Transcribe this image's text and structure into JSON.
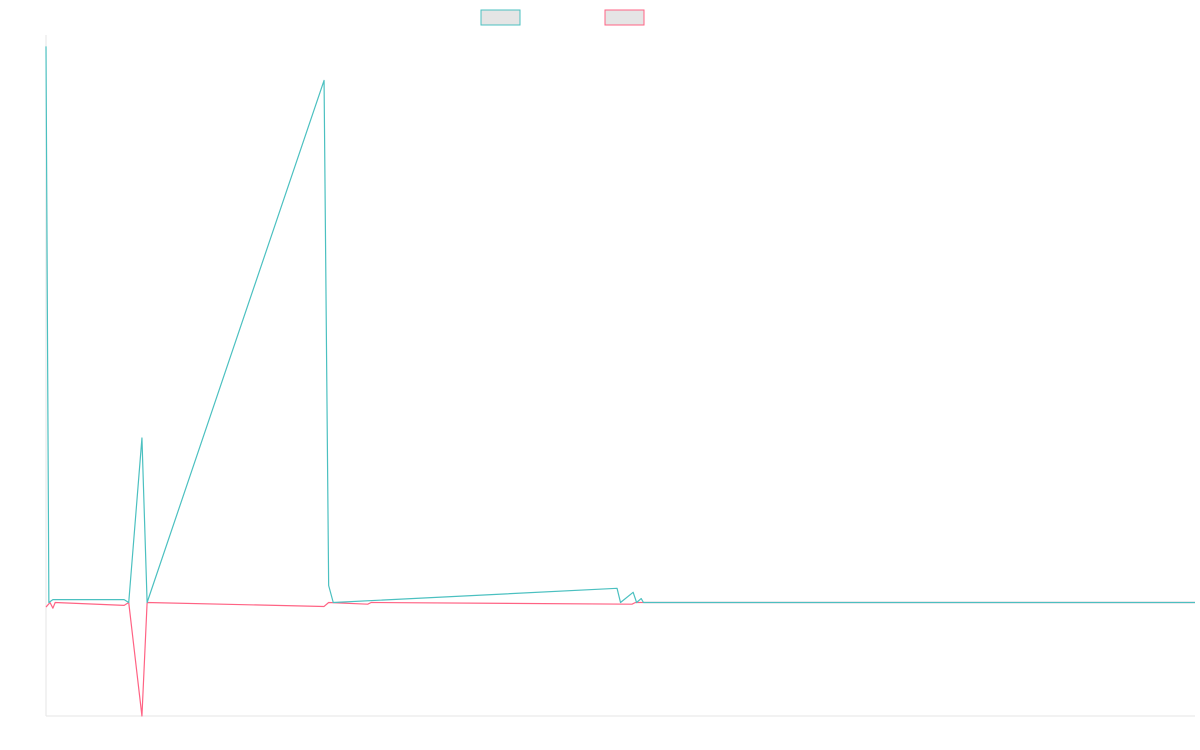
{
  "chart_data": {
    "type": "line",
    "title": "",
    "xlabel": "",
    "ylabel": "",
    "legend_position": "top-center",
    "grid": false,
    "ylim": [
      -20,
      100
    ],
    "xlim": [
      0,
      100
    ],
    "series": [
      {
        "color": "#4bc0c0",
        "fill": "#e5e5e5",
        "points": [
          [
            0,
            98
          ],
          [
            0.25,
            0
          ],
          [
            0.6,
            0.5
          ],
          [
            6.8,
            0.5
          ],
          [
            7.2,
            0
          ],
          [
            8.35,
            29
          ],
          [
            8.8,
            0
          ],
          [
            24.2,
            92
          ],
          [
            24.6,
            3
          ],
          [
            25.0,
            0
          ],
          [
            49.7,
            2.5
          ],
          [
            50.0,
            0
          ],
          [
            51.1,
            1.8
          ],
          [
            51.4,
            0
          ],
          [
            51.8,
            0.7
          ],
          [
            52.0,
            0
          ],
          [
            100,
            0
          ]
        ]
      },
      {
        "color": "#ff6384",
        "fill": "#e5e5e5",
        "points": [
          [
            0,
            -0.8
          ],
          [
            0.35,
            0
          ],
          [
            0.6,
            -1.0
          ],
          [
            0.8,
            0
          ],
          [
            6.8,
            -0.5
          ],
          [
            7.2,
            0
          ],
          [
            8.35,
            -20
          ],
          [
            8.8,
            0
          ],
          [
            24.2,
            -0.7
          ],
          [
            24.6,
            0
          ],
          [
            28.0,
            -0.3
          ],
          [
            28.3,
            0
          ],
          [
            51.0,
            -0.3
          ],
          [
            51.3,
            0
          ],
          [
            100,
            0
          ]
        ]
      }
    ]
  }
}
